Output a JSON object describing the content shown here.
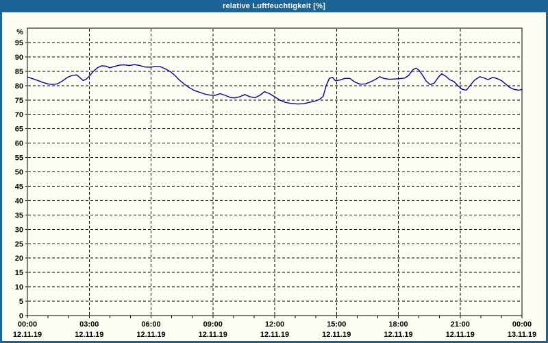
{
  "window": {
    "title": "relative Luftfeuchtigkeit [%]",
    "frame_color": "#1d6496",
    "title_text_color": "#ffffff",
    "content_background": "#fbfcf2"
  },
  "chart_data": {
    "type": "line",
    "title": "relative Luftfeuchtigkeit [%]",
    "ylabel": "%",
    "ylim": [
      0,
      100
    ],
    "xlim_hours": [
      0,
      24
    ],
    "grid": "dashed",
    "line_color": "#0000aa",
    "axis_color": "#000000",
    "yticks": [
      0,
      5,
      10,
      15,
      20,
      25,
      30,
      35,
      40,
      45,
      50,
      55,
      60,
      65,
      70,
      75,
      80,
      85,
      90,
      95
    ],
    "grid_hours": [
      3,
      6,
      9,
      12,
      15,
      18,
      21
    ],
    "minor_xtick_every_hours": 1,
    "xticks": [
      {
        "hour": 0,
        "time": "00:00",
        "date": "12.11.19"
      },
      {
        "hour": 3,
        "time": "03:00",
        "date": "12.11.19"
      },
      {
        "hour": 6,
        "time": "06:00",
        "date": "12.11.19"
      },
      {
        "hour": 9,
        "time": "09:00",
        "date": "12.11.19"
      },
      {
        "hour": 12,
        "time": "12:00",
        "date": "12.11.19"
      },
      {
        "hour": 15,
        "time": "15:00",
        "date": "12.11.19"
      },
      {
        "hour": 18,
        "time": "18:00",
        "date": "12.11.19"
      },
      {
        "hour": 21,
        "time": "21:00",
        "date": "12.11.19"
      },
      {
        "hour": 24,
        "time": "00:00",
        "date": "13.11.19"
      }
    ],
    "series": [
      {
        "name": "relative Luftfeuchtigkeit",
        "color": "#0000aa",
        "x_hours": [
          0,
          0.25,
          0.5,
          0.75,
          1.0,
          1.2,
          1.45,
          1.7,
          1.95,
          2.2,
          2.4,
          2.55,
          2.7,
          2.85,
          3.0,
          3.2,
          3.4,
          3.6,
          3.8,
          4.0,
          4.2,
          4.45,
          4.7,
          4.95,
          5.2,
          5.45,
          5.7,
          5.95,
          6.2,
          6.45,
          6.7,
          6.95,
          7.15,
          7.35,
          7.6,
          7.85,
          8.1,
          8.35,
          8.6,
          8.85,
          9.1,
          9.35,
          9.6,
          9.85,
          10.05,
          10.3,
          10.55,
          10.8,
          11.05,
          11.3,
          11.5,
          11.75,
          12.0,
          12.25,
          12.5,
          12.8,
          13.1,
          13.4,
          13.7,
          13.95,
          14.15,
          14.35,
          14.5,
          14.65,
          14.8,
          14.95,
          15.15,
          15.4,
          15.65,
          15.9,
          16.15,
          16.4,
          16.65,
          16.9,
          17.1,
          17.3,
          17.55,
          17.8,
          18.05,
          18.3,
          18.5,
          18.7,
          18.85,
          19.0,
          19.15,
          19.35,
          19.55,
          19.75,
          19.95,
          20.1,
          20.3,
          20.5,
          20.7,
          20.9,
          21.1,
          21.3,
          21.5,
          21.7,
          21.95,
          22.15,
          22.35,
          22.6,
          22.8,
          23.0,
          23.2,
          23.4,
          23.6,
          23.85,
          24.0
        ],
        "values": [
          83.0,
          82.4,
          81.8,
          81.1,
          80.6,
          80.4,
          80.6,
          81.6,
          82.9,
          83.6,
          83.7,
          82.8,
          81.8,
          82.2,
          83.3,
          85.0,
          86.2,
          86.9,
          86.8,
          86.2,
          86.6,
          87.1,
          87.2,
          87.0,
          87.3,
          87.0,
          86.5,
          86.4,
          86.6,
          86.6,
          85.8,
          84.8,
          83.6,
          82.1,
          80.6,
          79.3,
          78.3,
          77.7,
          77.1,
          76.7,
          76.6,
          77.2,
          76.6,
          75.9,
          75.7,
          76.1,
          76.9,
          76.1,
          75.8,
          76.7,
          77.9,
          77.2,
          76.1,
          75.0,
          74.2,
          73.8,
          73.6,
          73.7,
          74.2,
          74.6,
          75.1,
          76.2,
          80.0,
          82.5,
          82.9,
          81.7,
          81.9,
          82.5,
          82.5,
          81.2,
          80.5,
          80.6,
          81.3,
          82.2,
          83.1,
          82.5,
          82.2,
          82.3,
          82.4,
          82.6,
          83.5,
          85.5,
          86.1,
          85.4,
          83.9,
          81.6,
          80.3,
          80.9,
          83.0,
          84.1,
          83.3,
          82.0,
          81.4,
          79.9,
          78.7,
          78.4,
          80.2,
          81.9,
          83.1,
          82.7,
          82.1,
          82.9,
          82.4,
          81.8,
          80.6,
          79.4,
          78.7,
          78.4,
          78.7
        ]
      }
    ]
  }
}
